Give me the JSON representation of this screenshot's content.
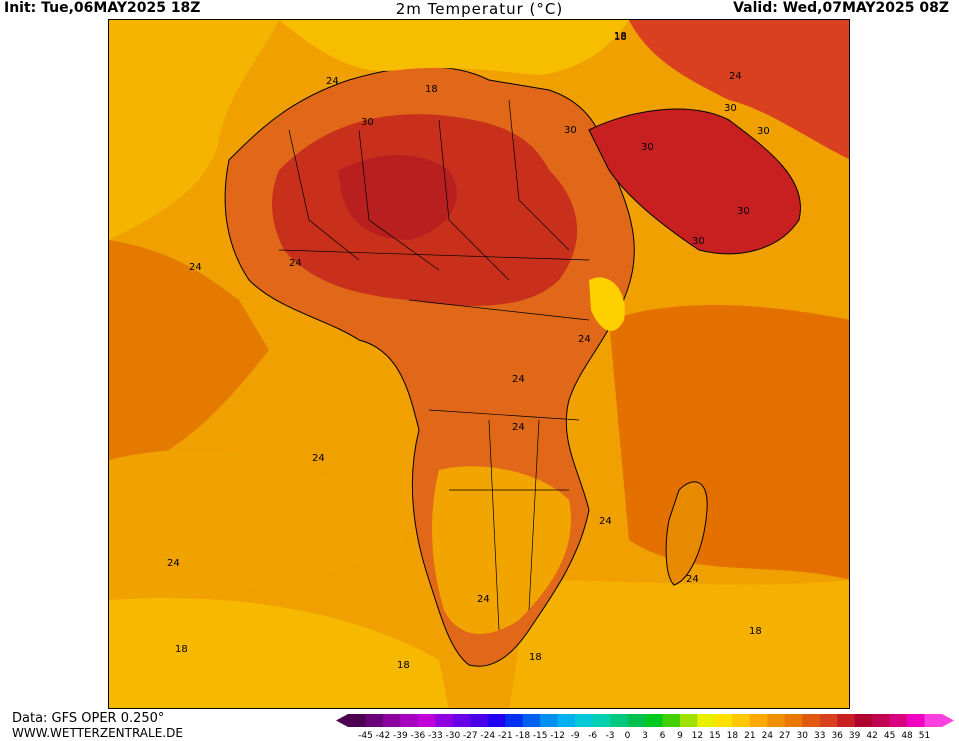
{
  "header": {
    "init": "Init: Tue,06MAY2025 18Z",
    "title": "2m Temperatur (°C)",
    "valid": "Valid: Wed,07MAY2025 08Z"
  },
  "footer": {
    "data_source": "Data: GFS OPER 0.250°",
    "website": "WWW.WETTERZENTRALE.DE"
  },
  "map": {
    "region": "Africa",
    "contour_labels": [
      "18",
      "24",
      "30",
      "18",
      "30",
      "24",
      "30",
      "30",
      "24",
      "24",
      "30",
      "30",
      "30",
      "24",
      "24",
      "24",
      "24",
      "24",
      "24",
      "24",
      "24",
      "18",
      "18",
      "18",
      "18",
      "18"
    ]
  },
  "legend": {
    "ticks": [
      "-45",
      "-42",
      "-39",
      "-36",
      "-33",
      "-30",
      "-27",
      "-24",
      "-21",
      "-18",
      "-15",
      "-12",
      "-9",
      "-6",
      "-3",
      "0",
      "3",
      "6",
      "9",
      "12",
      "15",
      "18",
      "21",
      "24",
      "27",
      "30",
      "33",
      "36",
      "39",
      "42",
      "45",
      "48",
      "51"
    ],
    "colors": [
      "#4b0050",
      "#6a0078",
      "#8c00a0",
      "#a800c0",
      "#c000d8",
      "#9000e0",
      "#6a00e8",
      "#4a00e8",
      "#2000f0",
      "#0030f0",
      "#0060f0",
      "#0090f0",
      "#00b0f0",
      "#00c8d8",
      "#00d0b0",
      "#00c880",
      "#00c050",
      "#00c820",
      "#40d000",
      "#a0e000",
      "#e8f000",
      "#ffe000",
      "#ffc800",
      "#ffa800",
      "#f09000",
      "#e87800",
      "#e05a10",
      "#d84020",
      "#c82020",
      "#b00030",
      "#c00050",
      "#d80080",
      "#f000c0",
      "#ff40e0"
    ]
  }
}
